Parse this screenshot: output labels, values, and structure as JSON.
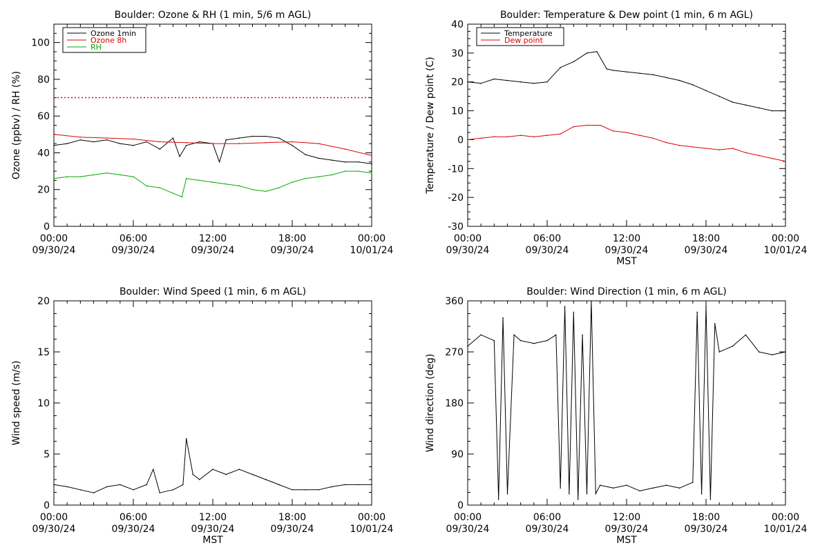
{
  "chart_data": [
    {
      "type": "line",
      "title": "Boulder: Ozone & RH (1 min, 5/6 m AGL)",
      "xlabel": "",
      "ylabel": "Ozone (ppbv) / RH (%)",
      "xlim": [
        "2024-09-30T00:00",
        "2024-10-01T00:00"
      ],
      "ylim": [
        0,
        110
      ],
      "yticks": [
        0,
        20,
        40,
        60,
        80,
        100
      ],
      "xtick_labels": [
        [
          "00:00",
          "09/30/24"
        ],
        [
          "06:00",
          "09/30/24"
        ],
        [
          "12:00",
          "09/30/24"
        ],
        [
          "18:00",
          "09/30/24"
        ],
        [
          "00:00",
          "10/01/24"
        ]
      ],
      "legend_position": "top-left",
      "reference_line": {
        "y": 70,
        "color": "#dd0000",
        "style": "dotted"
      },
      "series": [
        {
          "name": "Ozone 1min",
          "color": "#000000",
          "x": [
            "2024-09-30T00:00",
            "2024-09-30T01:00",
            "2024-09-30T02:00",
            "2024-09-30T03:00",
            "2024-09-30T04:00",
            "2024-09-30T05:00",
            "2024-09-30T06:00",
            "2024-09-30T07:00",
            "2024-09-30T08:00",
            "2024-09-30T09:00",
            "2024-09-30T09:30",
            "2024-09-30T10:00",
            "2024-09-30T11:00",
            "2024-09-30T12:00",
            "2024-09-30T12:30",
            "2024-09-30T13:00",
            "2024-09-30T14:00",
            "2024-09-30T15:00",
            "2024-09-30T16:00",
            "2024-09-30T17:00",
            "2024-09-30T18:00",
            "2024-09-30T19:00",
            "2024-09-30T20:00",
            "2024-09-30T21:00",
            "2024-09-30T22:00",
            "2024-09-30T23:00",
            "2024-10-01T00:00"
          ],
          "y": [
            44,
            45,
            47,
            46,
            47,
            45,
            44,
            46,
            42,
            48,
            38,
            44,
            46,
            45,
            35,
            47,
            48,
            49,
            49,
            48,
            44,
            39,
            37,
            36,
            35,
            35,
            34
          ]
        },
        {
          "name": "Ozone 8h",
          "color": "#dd0000",
          "x": [
            "2024-09-30T00:00",
            "2024-09-30T02:00",
            "2024-09-30T04:00",
            "2024-09-30T06:00",
            "2024-09-30T08:00",
            "2024-09-30T10:00",
            "2024-09-30T12:00",
            "2024-09-30T14:00",
            "2024-09-30T16:00",
            "2024-09-30T18:00",
            "2024-09-30T20:00",
            "2024-09-30T22:00",
            "2024-10-01T00:00"
          ],
          "y": [
            50,
            48.5,
            48,
            47.5,
            46,
            45.5,
            45,
            45,
            45.5,
            46,
            45,
            42,
            38.5
          ]
        },
        {
          "name": "RH",
          "color": "#00aa00",
          "x": [
            "2024-09-30T00:00",
            "2024-09-30T01:00",
            "2024-09-30T02:00",
            "2024-09-30T03:00",
            "2024-09-30T04:00",
            "2024-09-30T05:00",
            "2024-09-30T06:00",
            "2024-09-30T07:00",
            "2024-09-30T08:00",
            "2024-09-30T09:00",
            "2024-09-30T09:40",
            "2024-09-30T10:00",
            "2024-09-30T11:00",
            "2024-09-30T12:00",
            "2024-09-30T13:00",
            "2024-09-30T14:00",
            "2024-09-30T15:00",
            "2024-09-30T16:00",
            "2024-09-30T17:00",
            "2024-09-30T18:00",
            "2024-09-30T19:00",
            "2024-09-30T20:00",
            "2024-09-30T21:00",
            "2024-09-30T22:00",
            "2024-09-30T23:00",
            "2024-10-01T00:00"
          ],
          "y": [
            26,
            27,
            27,
            28,
            29,
            28,
            27,
            22,
            21,
            18,
            16,
            26,
            25,
            24,
            23,
            22,
            20,
            19,
            21,
            24,
            26,
            27,
            28,
            30,
            30,
            29
          ]
        }
      ]
    },
    {
      "type": "line",
      "title": "Boulder: Temperature & Dew point (1 min, 6 m AGL)",
      "xlabel": "MST",
      "ylabel": "Temperature / Dew point (C)",
      "xlim": [
        "2024-09-30T00:00",
        "2024-10-01T00:00"
      ],
      "ylim": [
        -30,
        40
      ],
      "yticks": [
        -30,
        -20,
        -10,
        0,
        10,
        20,
        30,
        40
      ],
      "xtick_labels": [
        [
          "00:00",
          "09/30/24"
        ],
        [
          "06:00",
          "09/30/24"
        ],
        [
          "12:00",
          "09/30/24"
        ],
        [
          "18:00",
          "09/30/24"
        ],
        [
          "00:00",
          "10/01/24"
        ]
      ],
      "legend_position": "top-left",
      "series": [
        {
          "name": "Temperature",
          "color": "#000000",
          "x": [
            "2024-09-30T00:00",
            "2024-09-30T01:00",
            "2024-09-30T02:00",
            "2024-09-30T03:00",
            "2024-09-30T04:00",
            "2024-09-30T05:00",
            "2024-09-30T06:00",
            "2024-09-30T07:00",
            "2024-09-30T08:00",
            "2024-09-30T09:00",
            "2024-09-30T09:45",
            "2024-09-30T10:30",
            "2024-09-30T11:00",
            "2024-09-30T12:00",
            "2024-09-30T13:00",
            "2024-09-30T14:00",
            "2024-09-30T15:00",
            "2024-09-30T16:00",
            "2024-09-30T17:00",
            "2024-09-30T18:00",
            "2024-09-30T19:00",
            "2024-09-30T20:00",
            "2024-09-30T21:00",
            "2024-09-30T22:00",
            "2024-09-30T23:00",
            "2024-10-01T00:00"
          ],
          "y": [
            20,
            19.5,
            21,
            20.5,
            20,
            19.5,
            20,
            25,
            27,
            30,
            30.5,
            24.5,
            24,
            23.5,
            23,
            22.5,
            21.5,
            20.5,
            19,
            17,
            15,
            13,
            12,
            11,
            10,
            10
          ]
        },
        {
          "name": "Dew point",
          "color": "#dd0000",
          "x": [
            "2024-09-30T00:00",
            "2024-09-30T01:00",
            "2024-09-30T02:00",
            "2024-09-30T03:00",
            "2024-09-30T04:00",
            "2024-09-30T05:00",
            "2024-09-30T06:00",
            "2024-09-30T07:00",
            "2024-09-30T08:00",
            "2024-09-30T09:00",
            "2024-09-30T10:00",
            "2024-09-30T11:00",
            "2024-09-30T12:00",
            "2024-09-30T13:00",
            "2024-09-30T14:00",
            "2024-09-30T15:00",
            "2024-09-30T16:00",
            "2024-09-30T17:00",
            "2024-09-30T18:00",
            "2024-09-30T19:00",
            "2024-09-30T20:00",
            "2024-09-30T21:00",
            "2024-09-30T22:00",
            "2024-09-30T23:00",
            "2024-10-01T00:00"
          ],
          "y": [
            0,
            0.5,
            1,
            1,
            1.5,
            1,
            1.5,
            2,
            4.5,
            5,
            5,
            3,
            2.5,
            1.5,
            0.5,
            -1,
            -2,
            -2.5,
            -3,
            -3.5,
            -3,
            -4.5,
            -5.5,
            -6.5,
            -7.5
          ]
        }
      ]
    },
    {
      "type": "line",
      "title": "Boulder: Wind Speed (1 min, 6 m AGL)",
      "xlabel": "MST",
      "ylabel": "Wind speed (m/s)",
      "xlim": [
        "2024-09-30T00:00",
        "2024-10-01T00:00"
      ],
      "ylim": [
        0,
        20
      ],
      "yticks": [
        0,
        5,
        10,
        15,
        20
      ],
      "xtick_labels": [
        [
          "00:00",
          "09/30/24"
        ],
        [
          "06:00",
          "09/30/24"
        ],
        [
          "12:00",
          "09/30/24"
        ],
        [
          "18:00",
          "09/30/24"
        ],
        [
          "00:00",
          "10/01/24"
        ]
      ],
      "series": [
        {
          "color": "#000000",
          "x": [
            "2024-09-30T00:00",
            "2024-09-30T01:00",
            "2024-09-30T02:00",
            "2024-09-30T03:00",
            "2024-09-30T04:00",
            "2024-09-30T05:00",
            "2024-09-30T06:00",
            "2024-09-30T07:00",
            "2024-09-30T07:30",
            "2024-09-30T08:00",
            "2024-09-30T09:00",
            "2024-09-30T09:45",
            "2024-09-30T10:00",
            "2024-09-30T10:30",
            "2024-09-30T11:00",
            "2024-09-30T12:00",
            "2024-09-30T13:00",
            "2024-09-30T14:00",
            "2024-09-30T15:00",
            "2024-09-30T16:00",
            "2024-09-30T17:00",
            "2024-09-30T18:00",
            "2024-09-30T19:00",
            "2024-09-30T20:00",
            "2024-09-30T21:00",
            "2024-09-30T22:00",
            "2024-09-30T23:00",
            "2024-10-01T00:00"
          ],
          "y": [
            2,
            1.8,
            1.5,
            1.2,
            1.8,
            2,
            1.5,
            2,
            3.5,
            1.2,
            1.5,
            2,
            6.5,
            3,
            2.5,
            3.5,
            3,
            3.5,
            3,
            2.5,
            2,
            1.5,
            1.5,
            1.5,
            1.8,
            2,
            2,
            2
          ]
        }
      ]
    },
    {
      "type": "line",
      "title": "Boulder: Wind Direction (1 min, 6 m AGL)",
      "xlabel": "MST",
      "ylabel": "Wind direction (deg)",
      "xlim": [
        "2024-09-30T00:00",
        "2024-10-01T00:00"
      ],
      "ylim": [
        0,
        360
      ],
      "yticks": [
        0,
        90,
        180,
        270,
        360
      ],
      "xtick_labels": [
        [
          "00:00",
          "09/30/24"
        ],
        [
          "06:00",
          "09/30/24"
        ],
        [
          "12:00",
          "09/30/24"
        ],
        [
          "18:00",
          "09/30/24"
        ],
        [
          "00:00",
          "10/01/24"
        ]
      ],
      "series": [
        {
          "color": "#000000",
          "x": [
            "2024-09-30T00:00",
            "2024-09-30T01:00",
            "2024-09-30T02:00",
            "2024-09-30T02:20",
            "2024-09-30T02:40",
            "2024-09-30T03:00",
            "2024-09-30T03:30",
            "2024-09-30T04:00",
            "2024-09-30T05:00",
            "2024-09-30T06:00",
            "2024-09-30T06:40",
            "2024-09-30T07:00",
            "2024-09-30T07:20",
            "2024-09-30T07:40",
            "2024-09-30T08:00",
            "2024-09-30T08:20",
            "2024-09-30T08:40",
            "2024-09-30T09:00",
            "2024-09-30T09:20",
            "2024-09-30T09:40",
            "2024-09-30T10:00",
            "2024-09-30T11:00",
            "2024-09-30T12:00",
            "2024-09-30T13:00",
            "2024-09-30T14:00",
            "2024-09-30T15:00",
            "2024-09-30T16:00",
            "2024-09-30T17:00",
            "2024-09-30T17:20",
            "2024-09-30T17:40",
            "2024-09-30T18:00",
            "2024-09-30T18:20",
            "2024-09-30T18:40",
            "2024-09-30T19:00",
            "2024-09-30T20:00",
            "2024-09-30T21:00",
            "2024-09-30T22:00",
            "2024-09-30T23:00",
            "2024-10-01T00:00"
          ],
          "y": [
            280,
            300,
            290,
            10,
            330,
            20,
            300,
            290,
            285,
            290,
            300,
            30,
            350,
            20,
            340,
            10,
            300,
            20,
            360,
            20,
            35,
            30,
            35,
            25,
            30,
            35,
            30,
            40,
            340,
            20,
            350,
            10,
            320,
            270,
            280,
            300,
            270,
            265,
            270
          ]
        }
      ]
    }
  ]
}
